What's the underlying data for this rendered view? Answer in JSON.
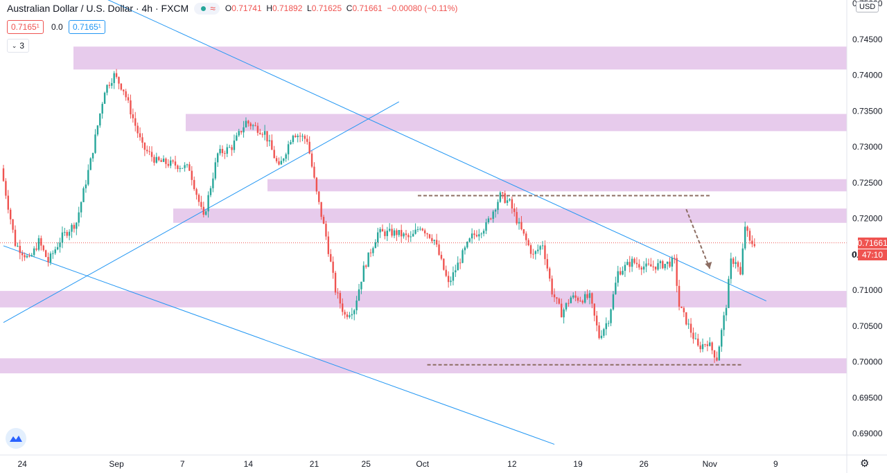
{
  "header": {
    "symbol": "Australian Dollar / U.S. Dollar",
    "interval": "4h",
    "exchange": "FXCM",
    "wave_icon": "≈",
    "open": "0.71741",
    "high": "0.71892",
    "low": "0.71625",
    "close": "0.71661",
    "change": "−0.00080 (−0.11%)",
    "sell_price": "0.7165¹",
    "spread": "0.0",
    "buy_price": "0.7165¹",
    "collapse_count": "3",
    "currency_button": "USD"
  },
  "last_price": {
    "value": "0.71661",
    "countdown": "47:10",
    "hidden_prefix": "0."
  },
  "colors": {
    "up": "#26a69a",
    "down": "#ef5350",
    "zone": "#e1bee7",
    "trendline": "#2196f3",
    "dashed": "#8d6e63",
    "text": "#131722"
  },
  "icons": {
    "logo": "tradingview-logo-icon",
    "settings": "gear-icon",
    "chevron": "chevron-down-icon"
  },
  "chart_data": {
    "type": "candlestick",
    "title": "Australian Dollar / U.S. Dollar, 4h, FXCM",
    "xlabel": "",
    "ylabel": "",
    "ylim": [
      0.6872,
      0.7505
    ],
    "y_ticks": [
      "0.75000",
      "0.74500",
      "0.74000",
      "0.73500",
      "0.73000",
      "0.72500",
      "0.72000",
      "0.71500",
      "0.71000",
      "0.70500",
      "0.70000",
      "0.69500",
      "0.69000"
    ],
    "x_ticks": [
      "24",
      "Sep",
      "7",
      "14",
      "21",
      "25",
      "Oct",
      "12",
      "19",
      "26",
      "Nov",
      "9"
    ],
    "x_ticks_bar_index": [
      4,
      24,
      38,
      52,
      66,
      77,
      89,
      108,
      122,
      136,
      150,
      164
    ],
    "bar_count": 160,
    "grid": false,
    "price_path_points": [
      [
        0,
        0.727
      ],
      [
        3,
        0.7165
      ],
      [
        6,
        0.7142
      ],
      [
        8,
        0.7168
      ],
      [
        10,
        0.714
      ],
      [
        13,
        0.7175
      ],
      [
        16,
        0.7195
      ],
      [
        19,
        0.728
      ],
      [
        22,
        0.738
      ],
      [
        24,
        0.74
      ],
      [
        26,
        0.738
      ],
      [
        30,
        0.73
      ],
      [
        33,
        0.728
      ],
      [
        37,
        0.7275
      ],
      [
        40,
        0.727
      ],
      [
        43,
        0.72
      ],
      [
        46,
        0.729
      ],
      [
        49,
        0.73
      ],
      [
        52,
        0.7335
      ],
      [
        56,
        0.732
      ],
      [
        59,
        0.727
      ],
      [
        62,
        0.732
      ],
      [
        65,
        0.731
      ],
      [
        67,
        0.7235
      ],
      [
        69,
        0.7175
      ],
      [
        71,
        0.71
      ],
      [
        73,
        0.7065
      ],
      [
        75,
        0.7075
      ],
      [
        77,
        0.713
      ],
      [
        80,
        0.718
      ],
      [
        84,
        0.718
      ],
      [
        87,
        0.7172
      ],
      [
        89,
        0.719
      ],
      [
        92,
        0.717
      ],
      [
        95,
        0.7108
      ],
      [
        98,
        0.715
      ],
      [
        100,
        0.7175
      ],
      [
        103,
        0.719
      ],
      [
        106,
        0.7232
      ],
      [
        108,
        0.7222
      ],
      [
        110,
        0.719
      ],
      [
        113,
        0.7148
      ],
      [
        115,
        0.7165
      ],
      [
        117,
        0.7098
      ],
      [
        119,
        0.7068
      ],
      [
        121,
        0.709
      ],
      [
        123,
        0.7088
      ],
      [
        125,
        0.709
      ],
      [
        127,
        0.7035
      ],
      [
        129,
        0.706
      ],
      [
        131,
        0.7125
      ],
      [
        134,
        0.714
      ],
      [
        137,
        0.7132
      ],
      [
        140,
        0.7135
      ],
      [
        143,
        0.714
      ],
      [
        144,
        0.7078
      ],
      [
        146,
        0.705
      ],
      [
        148,
        0.702
      ],
      [
        150,
        0.7028
      ],
      [
        152,
        0.7005
      ],
      [
        154,
        0.708
      ],
      [
        155,
        0.714
      ],
      [
        156,
        0.7142
      ],
      [
        157,
        0.712
      ],
      [
        158,
        0.719
      ],
      [
        159,
        0.7166
      ]
    ],
    "resistance_support_zones": [
      {
        "from": 0.7408,
        "to": 0.744
      },
      {
        "from": 0.7322,
        "to": 0.7346
      },
      {
        "from": 0.7238,
        "to": 0.7255
      },
      {
        "from": 0.7194,
        "to": 0.7214
      },
      {
        "from": 0.7076,
        "to": 0.7099
      },
      {
        "from": 0.6984,
        "to": 0.7005
      }
    ],
    "trendlines": [
      {
        "from": [
          0,
          0.7572
        ],
        "to": [
          162,
          0.7085
        ]
      },
      {
        "from": [
          0,
          0.7055
        ],
        "to": [
          84,
          0.7363
        ]
      },
      {
        "from": [
          0,
          0.7162
        ],
        "to": [
          117,
          0.6885
        ]
      }
    ],
    "horizontal_levels": [
      {
        "value": 0.7232,
        "from_bar": 88,
        "to_bar": 150
      },
      {
        "value": 0.6996,
        "from_bar": 90,
        "to_bar": 157
      }
    ],
    "projection_arrow": {
      "from": [
        145,
        0.7213
      ],
      "to": [
        150,
        0.713
      ]
    }
  }
}
